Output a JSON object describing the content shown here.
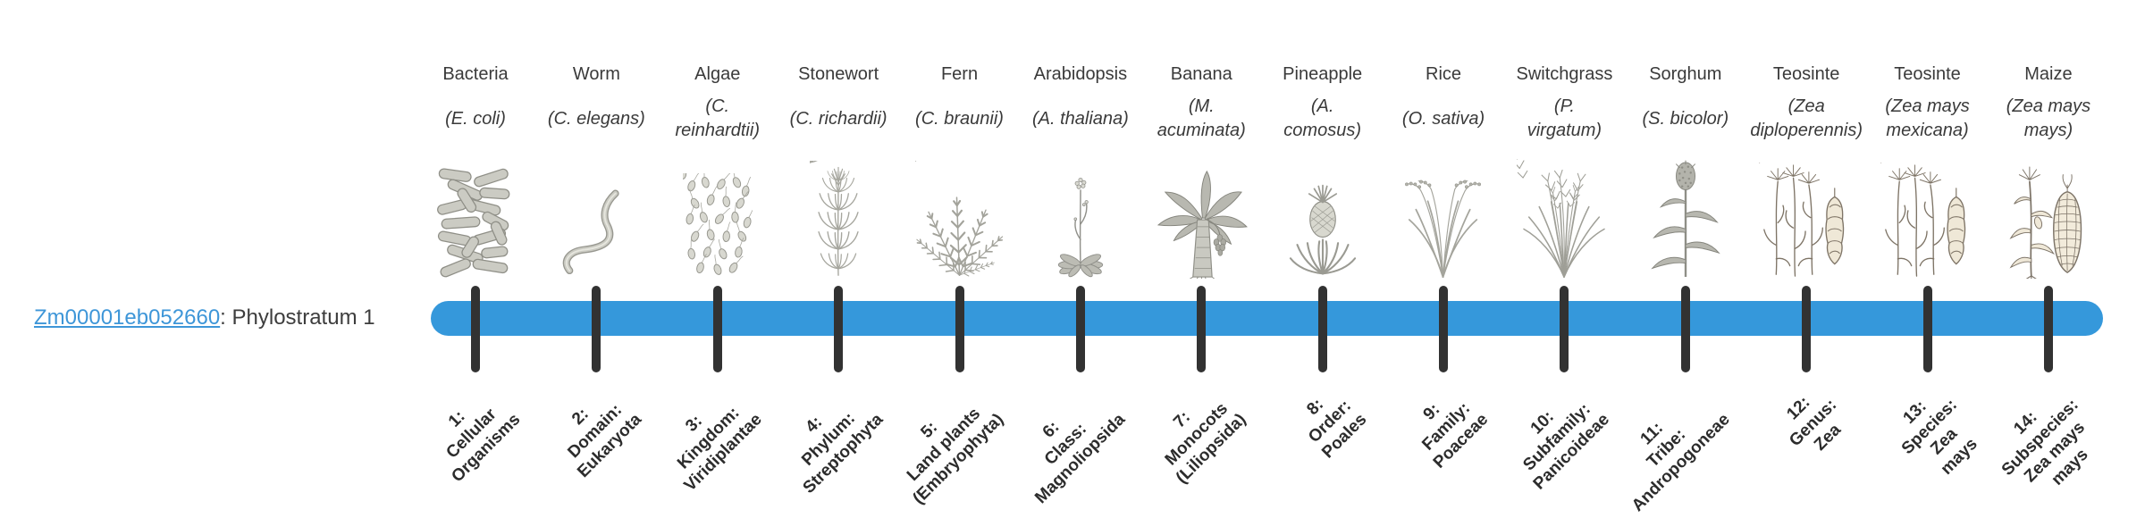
{
  "gene": {
    "id": "Zm00001eb052660",
    "suffix": ": Phylostratum 1"
  },
  "timeline": {
    "bar_color": "#3598db",
    "tick_color": "#323232",
    "link_color": "#3e96d8"
  },
  "organisms": [
    {
      "name": "Bacteria",
      "latin": "(E. coli)",
      "stratum": "1:\nCellular\nOrganisms",
      "icon": "bacteria-icon"
    },
    {
      "name": "Worm",
      "latin": "(C. elegans)",
      "stratum": "2:\nDomain:\nEukaryota",
      "icon": "worm-icon"
    },
    {
      "name": "Algae",
      "latin": "(C.\nreinhardtii)",
      "stratum": "3:\nKingdom:\nViridiplantae",
      "icon": "algae-icon"
    },
    {
      "name": "Stonewort",
      "latin": "(C. richardii)",
      "stratum": "4:\nPhylum:\nStreptophyta",
      "icon": "stonewort-icon"
    },
    {
      "name": "Fern",
      "latin": "(C. braunii)",
      "stratum": "5:\nLand plants\n(Embryophyta)",
      "icon": "fern-icon"
    },
    {
      "name": "Arabidopsis",
      "latin": "(A. thaliana)",
      "stratum": "6:\nClass:\nMagnoliopsida",
      "icon": "arabidopsis-icon"
    },
    {
      "name": "Banana",
      "latin": "(M.\nacuminata)",
      "stratum": "7:\nMonocots\n(Liliopsida)",
      "icon": "banana-icon"
    },
    {
      "name": "Pineapple",
      "latin": "(A.\ncomosus)",
      "stratum": "8:\nOrder:\nPoales",
      "icon": "pineapple-icon"
    },
    {
      "name": "Rice",
      "latin": "(O. sativa)",
      "stratum": "9:\nFamily:\nPoaceae",
      "icon": "rice-icon"
    },
    {
      "name": "Switchgrass",
      "latin": "(P.\nvirgatum)",
      "stratum": "10:\nSubfamily:\nPanicoideae",
      "icon": "switchgrass-icon"
    },
    {
      "name": "Sorghum",
      "latin": "(S. bicolor)",
      "stratum": "11:\nTribe:\nAndropogoneae",
      "icon": "sorghum-icon"
    },
    {
      "name": "Teosinte",
      "latin": "(Zea\ndiploperennis)",
      "stratum": "12:\nGenus:\nZea",
      "icon": "teosinte-icon"
    },
    {
      "name": "Teosinte",
      "latin": "(Zea mays\nmexicana)",
      "stratum": "13:\nSpecies:\nZea\nmays",
      "icon": "teosinte-icon"
    },
    {
      "name": "Maize",
      "latin": "(Zea mays\nmays)",
      "stratum": "14:\nSubspecies:\nZea mays\nmays",
      "icon": "maize-icon"
    }
  ]
}
